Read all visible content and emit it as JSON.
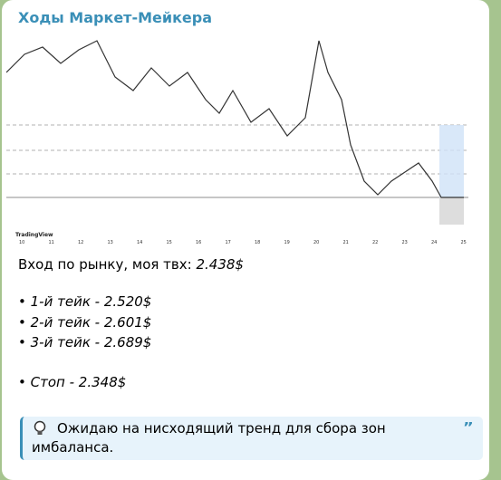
{
  "message": {
    "sender": "Ходы Маркет-Мейкера",
    "chart_image": {
      "brand": "TradingView",
      "x_labels": [
        "10",
        "11",
        "12",
        "13",
        "14",
        "15",
        "16",
        "17",
        "18",
        "19",
        "20",
        "21",
        "22",
        "23",
        "24",
        "25"
      ]
    },
    "entry": {
      "label": "Вход по рынку, моя твх:",
      "value": "2.438$"
    },
    "takes": [
      {
        "label": "1-й тейк -",
        "value": "2.520$"
      },
      {
        "label": "2-й тейк -",
        "value": "2.601$"
      },
      {
        "label": "3-й тейк -",
        "value": "2.689$"
      }
    ],
    "stop": {
      "label": "Стоп -",
      "value": "2.348$"
    },
    "quote": "Ожидаю на нисходящий тренд для сбора зон имбаланса."
  }
}
